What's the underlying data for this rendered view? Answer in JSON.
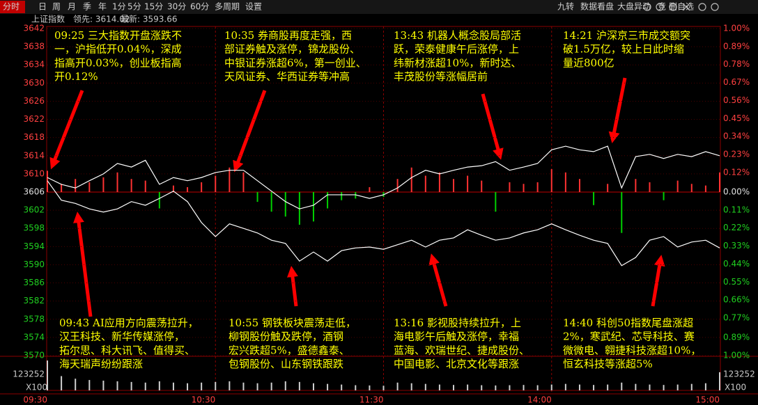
{
  "toolbar": {
    "left": [
      "分时",
      "日",
      "周",
      "月",
      "季",
      "年",
      "1分",
      "5分",
      "15分",
      "30分",
      "60分",
      "多周期",
      "设置"
    ],
    "right": [
      "九转",
      "数据看盘",
      "大盘异动",
      "竞",
      "删自选"
    ]
  },
  "header": {
    "name": "上证指数",
    "lead": "领先: 3614.02",
    "last": "最新: 3593.66"
  },
  "chart_data": {
    "type": "line",
    "x": [
      "09:30",
      "09:35",
      "09:40",
      "09:45",
      "09:50",
      "09:55",
      "10:00",
      "10:05",
      "10:10",
      "10:15",
      "10:20",
      "10:25",
      "10:30",
      "10:35",
      "10:40",
      "10:45",
      "10:50",
      "10:55",
      "11:00",
      "11:05",
      "11:10",
      "11:15",
      "11:20",
      "11:25",
      "11:30",
      "13:05",
      "13:10",
      "13:15",
      "13:20",
      "13:25",
      "13:30",
      "13:35",
      "13:40",
      "13:45",
      "13:50",
      "13:55",
      "14:00",
      "14:05",
      "14:10",
      "14:15",
      "14:20",
      "14:25",
      "14:30",
      "14:35",
      "14:40",
      "14:45",
      "14:50",
      "14:55",
      "15:00"
    ],
    "xticks": [
      "09:30",
      "10:30",
      "11:30",
      "14:00",
      "15:00"
    ],
    "ylim": [
      3570,
      3642
    ],
    "yticks": [
      3642,
      3638,
      3634,
      3630,
      3626,
      3622,
      3618,
      3614,
      3610,
      3606,
      3602,
      3598,
      3594,
      3590,
      3586,
      3582,
      3578,
      3574,
      3570
    ],
    "y2lim": [
      -1.0,
      1.0
    ],
    "y2ticks": [
      {
        "value": 1.0,
        "label": "1.00%"
      },
      {
        "value": 0.89,
        "label": "0.89%"
      },
      {
        "value": 0.78,
        "label": "0.78%"
      },
      {
        "value": 0.67,
        "label": "0.67%"
      },
      {
        "value": 0.56,
        "label": "0.56%"
      },
      {
        "value": 0.45,
        "label": "0.45%"
      },
      {
        "value": 0.34,
        "label": "0.34%"
      },
      {
        "value": 0.23,
        "label": "0.23%"
      },
      {
        "value": 0.12,
        "label": "0.12%"
      },
      {
        "value": 0.0,
        "label": "0.00%"
      },
      {
        "value": -0.11,
        "label": "0.11%"
      },
      {
        "value": -0.22,
        "label": "0.22%"
      },
      {
        "value": -0.33,
        "label": "0.33%"
      },
      {
        "value": -0.44,
        "label": "0.44%"
      },
      {
        "value": -0.55,
        "label": "0.55%"
      },
      {
        "value": -0.66,
        "label": "0.66%"
      },
      {
        "value": -0.77,
        "label": "0.77%"
      },
      {
        "value": -0.89,
        "label": "0.89%"
      },
      {
        "value": -1.0,
        "label": "1.00%"
      }
    ],
    "grid": true,
    "series": [
      {
        "color": "#ffffff",
        "values": [
          3609.2,
          3607.7,
          3606.9,
          3608.5,
          3610.0,
          3612.3,
          3611.5,
          3613.0,
          3607.7,
          3609.2,
          3608.5,
          3609.2,
          3610.3,
          3610.8,
          3610.8,
          3608.5,
          3606.2,
          3603.9,
          3602.3,
          3603.1,
          3605.4,
          3605.4,
          3605.4,
          3604.6,
          3605.4,
          3606.9,
          3609.2,
          3610.8,
          3610.0,
          3610.8,
          3611.5,
          3611.8,
          3612.7,
          3610.8,
          3611.5,
          3612.3,
          3615.3,
          3616.1,
          3615.3,
          3614.9,
          3616.1,
          3606.9,
          3613.8,
          3614.3,
          3613.4,
          3614.3,
          3613.8,
          3614.9,
          3614.0
        ]
      },
      {
        "color": "#ffffff",
        "values": [
          3608.5,
          3604.2,
          3603.5,
          3602.3,
          3601.6,
          3602.3,
          3603.9,
          3603.1,
          3604.6,
          3606.2,
          3603.9,
          3599.3,
          3596.2,
          3599.0,
          3598.0,
          3597.0,
          3595.4,
          3594.7,
          3590.8,
          3592.8,
          3590.8,
          3593.1,
          3593.7,
          3593.9,
          3593.4,
          3594.4,
          3595.4,
          3593.9,
          3595.4,
          3595.9,
          3597.7,
          3596.5,
          3595.4,
          3595.9,
          3597.0,
          3597.7,
          3599.0,
          3597.7,
          3596.5,
          3595.4,
          3594.7,
          3589.8,
          3591.6,
          3595.4,
          3596.2,
          3593.9,
          3595.0,
          3595.4,
          3593.7
        ]
      },
      {
        "type": "bar",
        "axis": "y2",
        "color": "#ff3232",
        "negative_color": "#00d000",
        "values": [
          0.13,
          0.05,
          0.08,
          0.06,
          0.09,
          0.12,
          0.08,
          0.07,
          -0.1,
          0.04,
          0.03,
          0.06,
          0.1,
          0.15,
          0.12,
          -0.06,
          -0.12,
          -0.15,
          -0.2,
          -0.18,
          -0.1,
          -0.05,
          -0.04,
          0.03,
          -0.03,
          0.08,
          0.15,
          0.1,
          0.12,
          0.08,
          0.1,
          0.07,
          -0.12,
          0.06,
          0.05,
          0.06,
          0.14,
          0.12,
          0.08,
          -0.08,
          0.05,
          -0.25,
          0.08,
          0.06,
          -0.05,
          0.07,
          0.05,
          0.04,
          0.12
        ]
      }
    ],
    "volume": {
      "color": "#d0d0d0",
      "ylim": [
        0,
        246504
      ],
      "yticks": [
        123252
      ],
      "unit": "X100",
      "values": [
        230000,
        110000,
        90000,
        80000,
        75000,
        70000,
        65000,
        60000,
        70000,
        60000,
        55000,
        60000,
        65000,
        70000,
        60000,
        55000,
        60000,
        70000,
        65000,
        55000,
        50000,
        45000,
        40000,
        38000,
        36000,
        60000,
        55000,
        50000,
        45000,
        42000,
        45000,
        40000,
        38000,
        40000,
        42000,
        40000,
        45000,
        50000,
        45000,
        42000,
        45000,
        60000,
        50000,
        45000,
        42000,
        45000,
        50000,
        55000,
        140000
      ]
    },
    "annotations": [
      {
        "lines": [
          "09:25 三大指数开盘涨跌不",
          "一，沪指低开0.04%，深成",
          "指高开0.03%，创业板指高",
          "开0.12%"
        ]
      },
      {
        "lines": [
          "10:35 券商股再度走强，西",
          "部证券触及涨停，锦龙股份、",
          "中银证券涨超6%，第一创业、",
          "天风证券、华西证券等冲高"
        ]
      },
      {
        "lines": [
          "13:43 机器人概念股局部活",
          "跃，荣泰健康午后涨停，上",
          "纬新材涨超10%，新时达、",
          "丰茂股份等涨幅居前"
        ]
      },
      {
        "lines": [
          "14:21 沪深京三市成交额突",
          "破1.5万亿，较上日此时缩",
          "量近800亿"
        ]
      },
      {
        "lines": [
          "09:43 AI应用方向震荡拉升，",
          "汉王科技、新华传媒涨停，",
          "拓尔思、科大讯飞、值得买、",
          "海天瑞声纷纷跟涨"
        ]
      },
      {
        "lines": [
          "10:55 钢铁板块震荡走低，",
          "柳钢股份触及跌停，酒钢",
          "宏兴跌超5%，盛德鑫泰、",
          "包钢股份、山东钢铁跟跌"
        ]
      },
      {
        "lines": [
          "13:16 影视股持续拉升，上",
          "海电影午后触及涨停，幸福",
          "蓝海、欢瑞世纪、捷成股份、",
          "中国电影、北京文化等跟涨"
        ]
      },
      {
        "lines": [
          "14:40 科创50指数尾盘涨超",
          "2%，寒武纪、芯导科技、赛",
          "微微电、翱捷科技涨超10%，",
          "恒玄科技等涨超5%"
        ]
      }
    ]
  }
}
